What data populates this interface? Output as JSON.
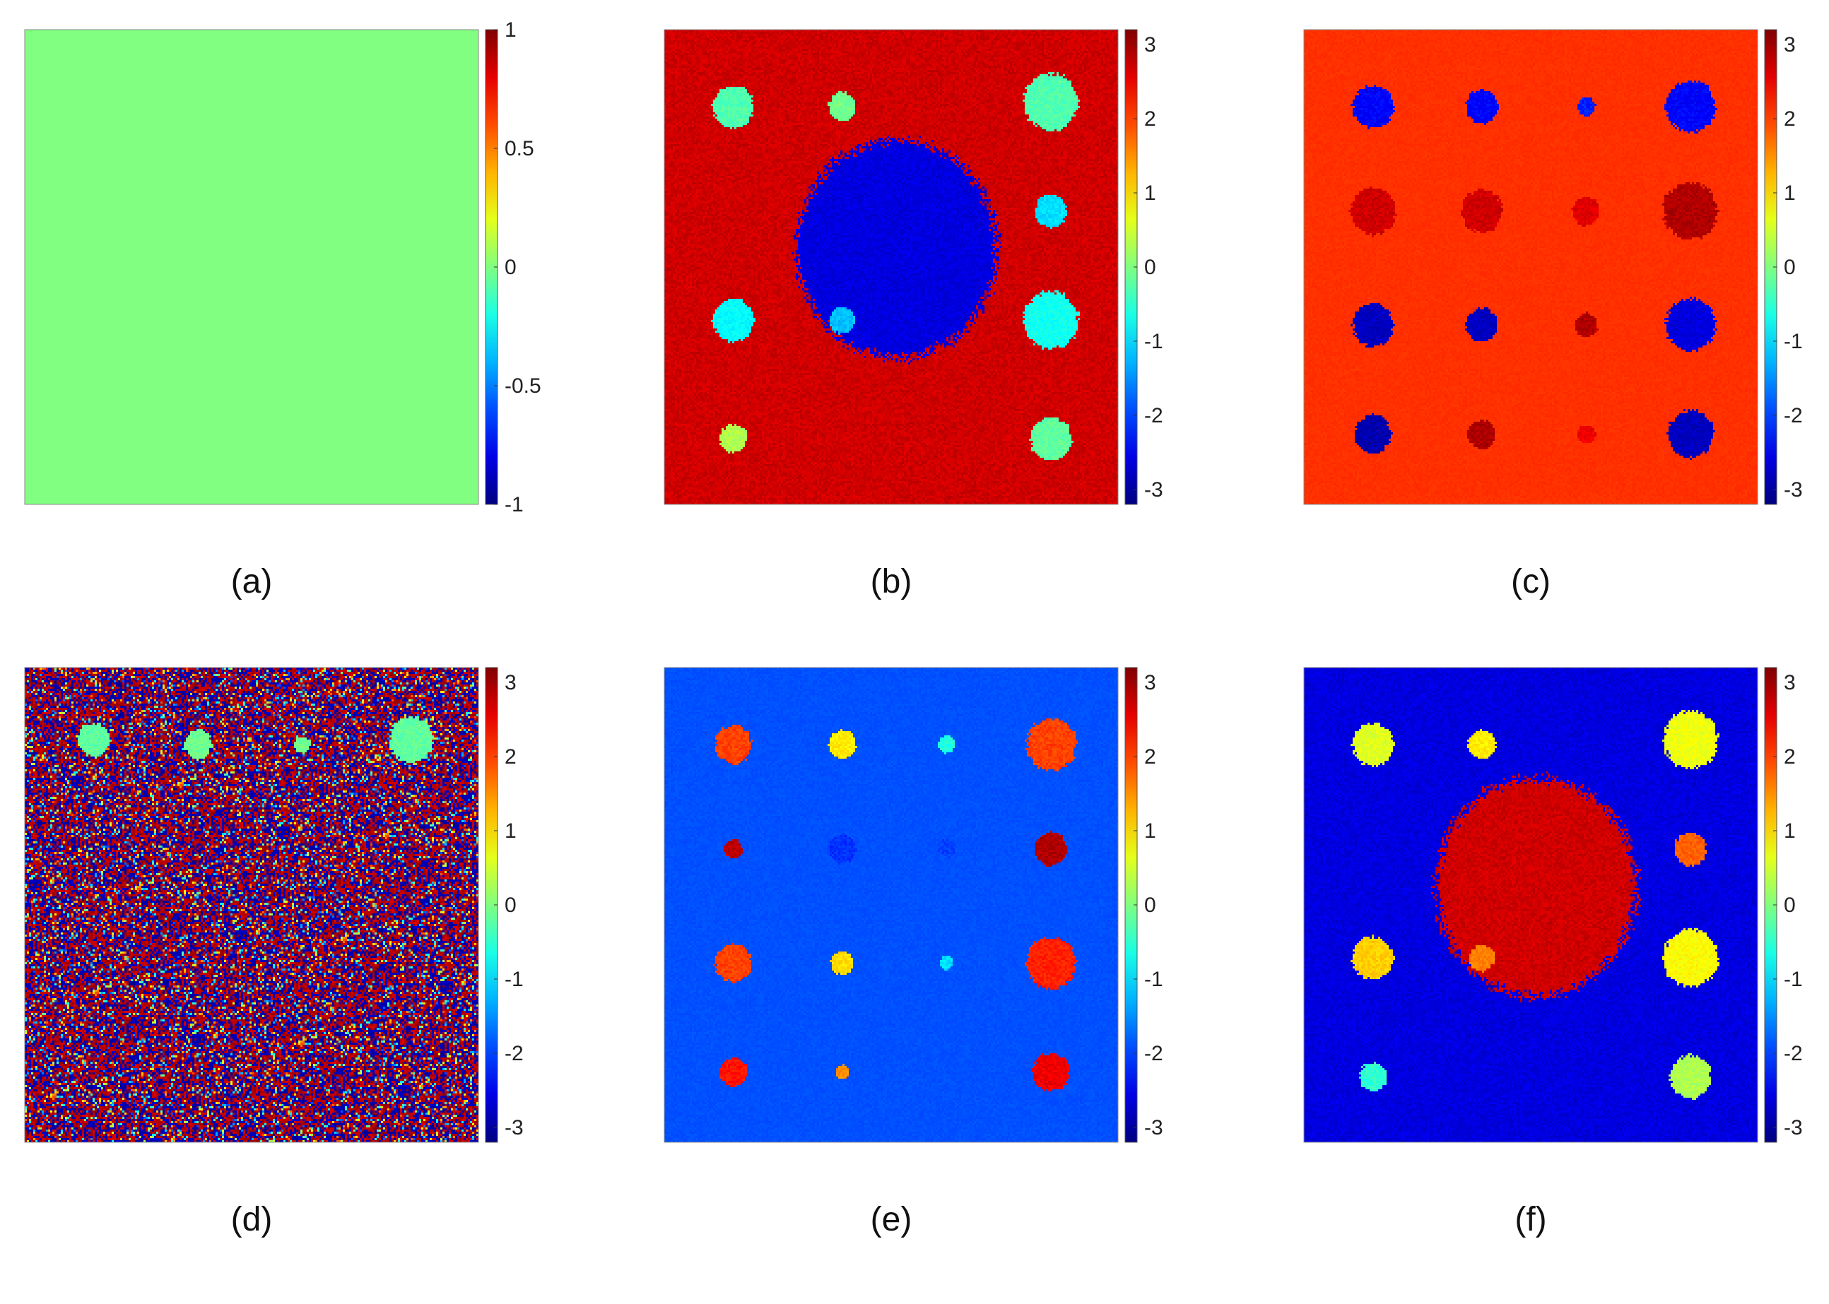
{
  "chart_data": [
    {
      "type": "heatmap",
      "caption": "(a)",
      "colormap": "jet",
      "clim": [
        -1,
        1
      ],
      "colorbar_ticks": [
        1,
        0.5,
        0,
        -0.5,
        -1
      ],
      "colorbar_tick_labels": [
        "1",
        "0.5",
        "0",
        "-0.5",
        "-1"
      ],
      "background_value": 0.0,
      "noise": 0.0,
      "blobs": [],
      "central_region": null
    },
    {
      "type": "heatmap",
      "caption": "(b)",
      "colormap": "jet",
      "clim": [
        -3.2,
        3.2
      ],
      "colorbar_ticks": [
        3,
        2,
        1,
        0,
        -1,
        -2,
        -3
      ],
      "colorbar_tick_labels": [
        "3",
        "2",
        "1",
        "0",
        "-1",
        "-2",
        "-3"
      ],
      "background_value": 2.7,
      "noise": 0.15,
      "central_region": {
        "cx": 0.51,
        "cy": 0.46,
        "rx": 0.22,
        "ry": 0.23,
        "value": -2.6
      },
      "blobs": [
        {
          "x": 0.15,
          "y": 0.16,
          "r": 0.045,
          "value": -0.3
        },
        {
          "x": 0.39,
          "y": 0.16,
          "r": 0.03,
          "value": -0.1
        },
        {
          "x": 0.85,
          "y": 0.15,
          "r": 0.06,
          "value": -0.3
        },
        {
          "x": 0.85,
          "y": 0.38,
          "r": 0.035,
          "value": -1.0
        },
        {
          "x": 0.15,
          "y": 0.61,
          "r": 0.045,
          "value": -0.8
        },
        {
          "x": 0.39,
          "y": 0.61,
          "r": 0.028,
          "value": -1.2
        },
        {
          "x": 0.85,
          "y": 0.61,
          "r": 0.06,
          "value": -0.7
        },
        {
          "x": 0.15,
          "y": 0.86,
          "r": 0.03,
          "value": 0.3
        },
        {
          "x": 0.85,
          "y": 0.86,
          "r": 0.045,
          "value": -0.2
        }
      ]
    },
    {
      "type": "heatmap",
      "caption": "(c)",
      "colormap": "jet",
      "clim": [
        -3.2,
        3.2
      ],
      "colorbar_ticks": [
        3,
        2,
        1,
        0,
        -1,
        -2,
        -3
      ],
      "colorbar_tick_labels": [
        "3",
        "2",
        "1",
        "0",
        "-1",
        "-2",
        "-3"
      ],
      "background_value": 2.1,
      "noise": 0.05,
      "central_region": null,
      "blobs": [
        {
          "x": 0.15,
          "y": 0.16,
          "r": 0.045,
          "value": -2.4
        },
        {
          "x": 0.39,
          "y": 0.16,
          "r": 0.035,
          "value": -2.4
        },
        {
          "x": 0.62,
          "y": 0.16,
          "r": 0.02,
          "value": -2.2
        },
        {
          "x": 0.85,
          "y": 0.16,
          "r": 0.055,
          "value": -2.4
        },
        {
          "x": 0.15,
          "y": 0.38,
          "r": 0.05,
          "value": 2.7
        },
        {
          "x": 0.39,
          "y": 0.38,
          "r": 0.045,
          "value": 2.7
        },
        {
          "x": 0.62,
          "y": 0.38,
          "r": 0.03,
          "value": 2.6
        },
        {
          "x": 0.85,
          "y": 0.38,
          "r": 0.06,
          "value": 2.9
        },
        {
          "x": 0.15,
          "y": 0.62,
          "r": 0.045,
          "value": -2.8
        },
        {
          "x": 0.39,
          "y": 0.62,
          "r": 0.035,
          "value": -2.8
        },
        {
          "x": 0.62,
          "y": 0.62,
          "r": 0.025,
          "value": 2.9
        },
        {
          "x": 0.85,
          "y": 0.62,
          "r": 0.055,
          "value": -2.6
        },
        {
          "x": 0.15,
          "y": 0.85,
          "r": 0.04,
          "value": -2.9
        },
        {
          "x": 0.39,
          "y": 0.85,
          "r": 0.03,
          "value": 2.9
        },
        {
          "x": 0.62,
          "y": 0.85,
          "r": 0.02,
          "value": 2.5
        },
        {
          "x": 0.85,
          "y": 0.85,
          "r": 0.05,
          "value": -2.8
        }
      ]
    },
    {
      "type": "heatmap",
      "caption": "(d)",
      "colormap": "jet",
      "clim": [
        -3.2,
        3.2
      ],
      "colorbar_ticks": [
        3,
        2,
        1,
        0,
        -1,
        -2,
        -3
      ],
      "colorbar_tick_labels": [
        "3",
        "2",
        "1",
        "0",
        "-1",
        "-2",
        "-3"
      ],
      "background_value": 0.0,
      "noise": 0.0,
      "random_phase": true,
      "central_region": null,
      "blobs": [
        {
          "x": 0.15,
          "y": 0.15,
          "r": 0.035,
          "value": -0.2
        },
        {
          "x": 0.38,
          "y": 0.16,
          "r": 0.03,
          "value": -0.1
        },
        {
          "x": 0.61,
          "y": 0.16,
          "r": 0.018,
          "value": -0.1
        },
        {
          "x": 0.85,
          "y": 0.15,
          "r": 0.048,
          "value": -0.2
        }
      ]
    },
    {
      "type": "heatmap",
      "caption": "(e)",
      "colormap": "jet",
      "clim": [
        -3.2,
        3.2
      ],
      "colorbar_ticks": [
        3,
        2,
        1,
        0,
        -1,
        -2,
        -3
      ],
      "colorbar_tick_labels": [
        "3",
        "2",
        "1",
        "0",
        "-1",
        "-2",
        "-3"
      ],
      "background_value": -1.9,
      "noise": 0.06,
      "central_region": null,
      "blobs": [
        {
          "x": 0.15,
          "y": 0.16,
          "r": 0.04,
          "value": 2.0
        },
        {
          "x": 0.39,
          "y": 0.16,
          "r": 0.03,
          "value": 0.9
        },
        {
          "x": 0.62,
          "y": 0.16,
          "r": 0.018,
          "value": -0.6
        },
        {
          "x": 0.85,
          "y": 0.16,
          "r": 0.055,
          "value": 2.0
        },
        {
          "x": 0.15,
          "y": 0.38,
          "r": 0.02,
          "value": 2.8
        },
        {
          "x": 0.39,
          "y": 0.38,
          "r": 0.03,
          "value": -2.1
        },
        {
          "x": 0.62,
          "y": 0.38,
          "r": 0.02,
          "value": -2.0
        },
        {
          "x": 0.85,
          "y": 0.38,
          "r": 0.035,
          "value": 2.9
        },
        {
          "x": 0.15,
          "y": 0.62,
          "r": 0.04,
          "value": 2.0
        },
        {
          "x": 0.39,
          "y": 0.62,
          "r": 0.025,
          "value": 1.0
        },
        {
          "x": 0.62,
          "y": 0.62,
          "r": 0.015,
          "value": -1.0
        },
        {
          "x": 0.85,
          "y": 0.62,
          "r": 0.055,
          "value": 2.2
        },
        {
          "x": 0.15,
          "y": 0.85,
          "r": 0.03,
          "value": 2.3
        },
        {
          "x": 0.39,
          "y": 0.85,
          "r": 0.015,
          "value": 1.5
        },
        {
          "x": 0.85,
          "y": 0.85,
          "r": 0.04,
          "value": 2.5
        }
      ]
    },
    {
      "type": "heatmap",
      "caption": "(f)",
      "colormap": "jet",
      "clim": [
        -3.2,
        3.2
      ],
      "colorbar_ticks": [
        3,
        2,
        1,
        0,
        -1,
        -2,
        -3
      ],
      "colorbar_tick_labels": [
        "3",
        "2",
        "1",
        "0",
        "-1",
        "-2",
        "-3"
      ],
      "background_value": -2.6,
      "noise": 0.15,
      "central_region": {
        "cx": 0.51,
        "cy": 0.46,
        "rx": 0.22,
        "ry": 0.23,
        "value": 2.7
      },
      "blobs": [
        {
          "x": 0.15,
          "y": 0.16,
          "r": 0.045,
          "value": 0.6
        },
        {
          "x": 0.39,
          "y": 0.16,
          "r": 0.03,
          "value": 0.9
        },
        {
          "x": 0.85,
          "y": 0.15,
          "r": 0.06,
          "value": 0.7
        },
        {
          "x": 0.85,
          "y": 0.38,
          "r": 0.035,
          "value": 1.8
        },
        {
          "x": 0.15,
          "y": 0.61,
          "r": 0.045,
          "value": 1.1
        },
        {
          "x": 0.39,
          "y": 0.61,
          "r": 0.028,
          "value": 1.6
        },
        {
          "x": 0.85,
          "y": 0.61,
          "r": 0.06,
          "value": 0.8
        },
        {
          "x": 0.15,
          "y": 0.86,
          "r": 0.03,
          "value": -0.5
        },
        {
          "x": 0.85,
          "y": 0.86,
          "r": 0.045,
          "value": 0.3
        }
      ]
    }
  ]
}
